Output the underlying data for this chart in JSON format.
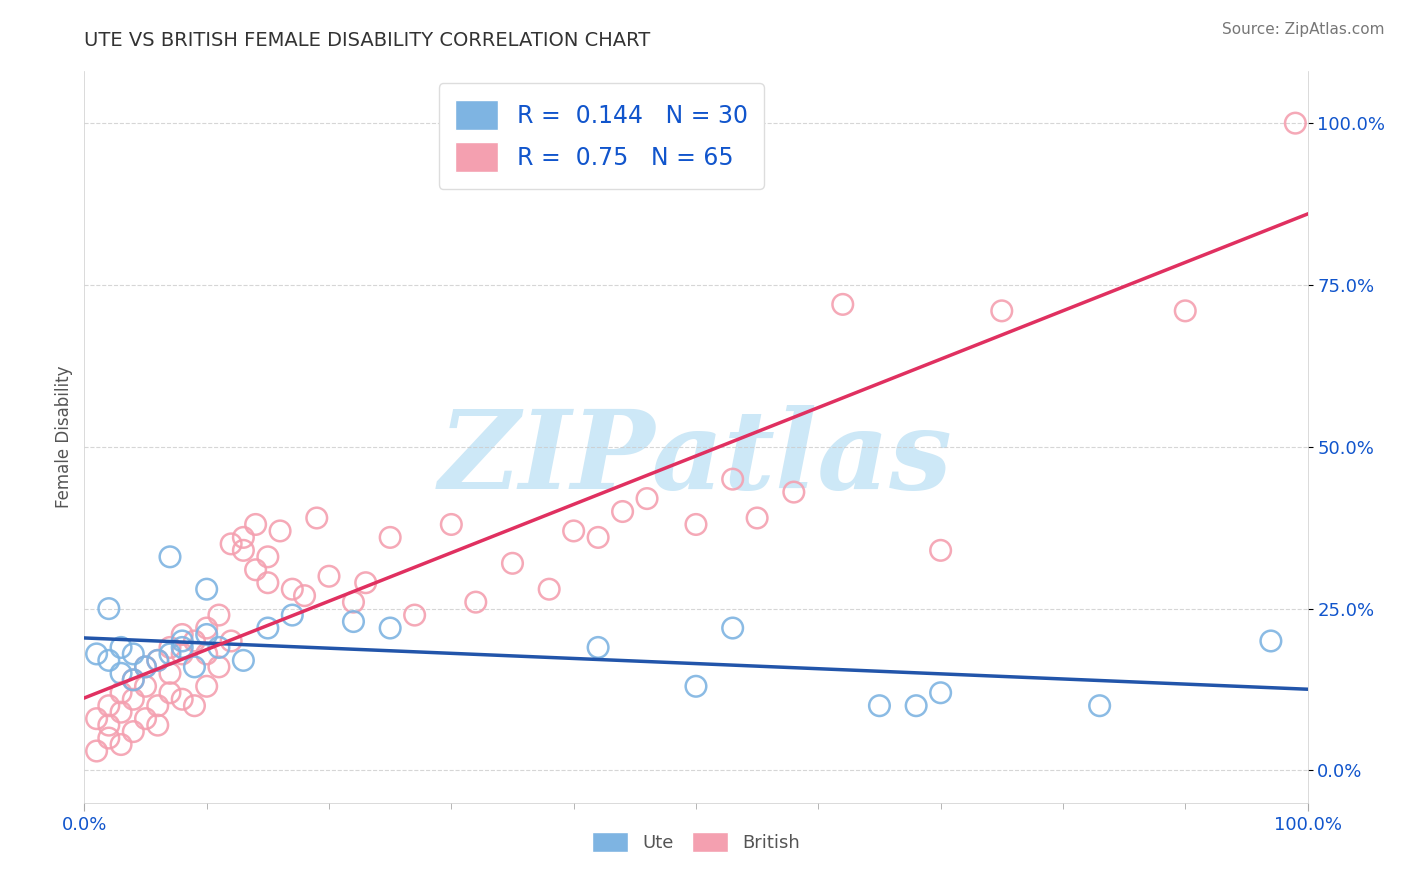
{
  "title": "UTE VS BRITISH FEMALE DISABILITY CORRELATION CHART",
  "source_text": "Source: ZipAtlas.com",
  "ylabel": "Female Disability",
  "xlim": [
    0,
    1
  ],
  "ylim": [
    -0.05,
    1.08
  ],
  "y_tick_positions": [
    0.0,
    0.25,
    0.5,
    0.75,
    1.0
  ],
  "y_tick_labels": [
    "0.0%",
    "25.0%",
    "50.0%",
    "75.0%",
    "100.0%"
  ],
  "grid_color": "#cccccc",
  "watermark": "ZIPatlas",
  "watermark_color": "#cde8f7",
  "ute_color": "#7EB4E2",
  "british_color": "#F4A0B0",
  "ute_line_color": "#2255AA",
  "british_line_color": "#E03060",
  "ute_R": 0.144,
  "ute_N": 30,
  "british_R": 0.75,
  "british_N": 65,
  "ute_x": [
    0.01,
    0.02,
    0.02,
    0.03,
    0.03,
    0.04,
    0.04,
    0.05,
    0.06,
    0.07,
    0.07,
    0.08,
    0.08,
    0.09,
    0.1,
    0.1,
    0.11,
    0.13,
    0.15,
    0.17,
    0.22,
    0.25,
    0.42,
    0.5,
    0.53,
    0.65,
    0.68,
    0.7,
    0.83,
    0.97
  ],
  "ute_y": [
    0.18,
    0.25,
    0.17,
    0.15,
    0.19,
    0.18,
    0.14,
    0.16,
    0.17,
    0.18,
    0.33,
    0.19,
    0.2,
    0.16,
    0.21,
    0.28,
    0.19,
    0.17,
    0.22,
    0.24,
    0.23,
    0.22,
    0.19,
    0.13,
    0.22,
    0.1,
    0.1,
    0.12,
    0.1,
    0.2
  ],
  "british_x": [
    0.01,
    0.01,
    0.02,
    0.02,
    0.02,
    0.03,
    0.03,
    0.03,
    0.04,
    0.04,
    0.04,
    0.05,
    0.05,
    0.05,
    0.06,
    0.06,
    0.06,
    0.07,
    0.07,
    0.07,
    0.08,
    0.08,
    0.08,
    0.09,
    0.09,
    0.1,
    0.1,
    0.1,
    0.11,
    0.11,
    0.12,
    0.12,
    0.13,
    0.13,
    0.14,
    0.14,
    0.15,
    0.15,
    0.16,
    0.17,
    0.18,
    0.19,
    0.2,
    0.22,
    0.23,
    0.25,
    0.27,
    0.3,
    0.32,
    0.35,
    0.38,
    0.4,
    0.42,
    0.44,
    0.46,
    0.47,
    0.5,
    0.53,
    0.55,
    0.58,
    0.62,
    0.7,
    0.75,
    0.9,
    0.99
  ],
  "british_y": [
    0.03,
    0.08,
    0.05,
    0.07,
    0.1,
    0.04,
    0.09,
    0.12,
    0.06,
    0.11,
    0.14,
    0.08,
    0.13,
    0.16,
    0.07,
    0.1,
    0.17,
    0.12,
    0.15,
    0.19,
    0.11,
    0.18,
    0.21,
    0.1,
    0.2,
    0.13,
    0.22,
    0.18,
    0.16,
    0.24,
    0.2,
    0.35,
    0.36,
    0.34,
    0.31,
    0.38,
    0.29,
    0.33,
    0.37,
    0.28,
    0.27,
    0.39,
    0.3,
    0.26,
    0.29,
    0.36,
    0.24,
    0.38,
    0.26,
    0.32,
    0.28,
    0.37,
    0.36,
    0.4,
    0.42,
    1.0,
    0.38,
    0.45,
    0.39,
    0.43,
    0.72,
    0.34,
    0.71,
    0.71,
    1.0
  ],
  "legend_color": "#1155CC",
  "title_color": "#333333",
  "axis_label_color": "#555555",
  "tick_label_color": "#1155CC",
  "source_color": "#777777",
  "bottom_label_color": "#555555"
}
